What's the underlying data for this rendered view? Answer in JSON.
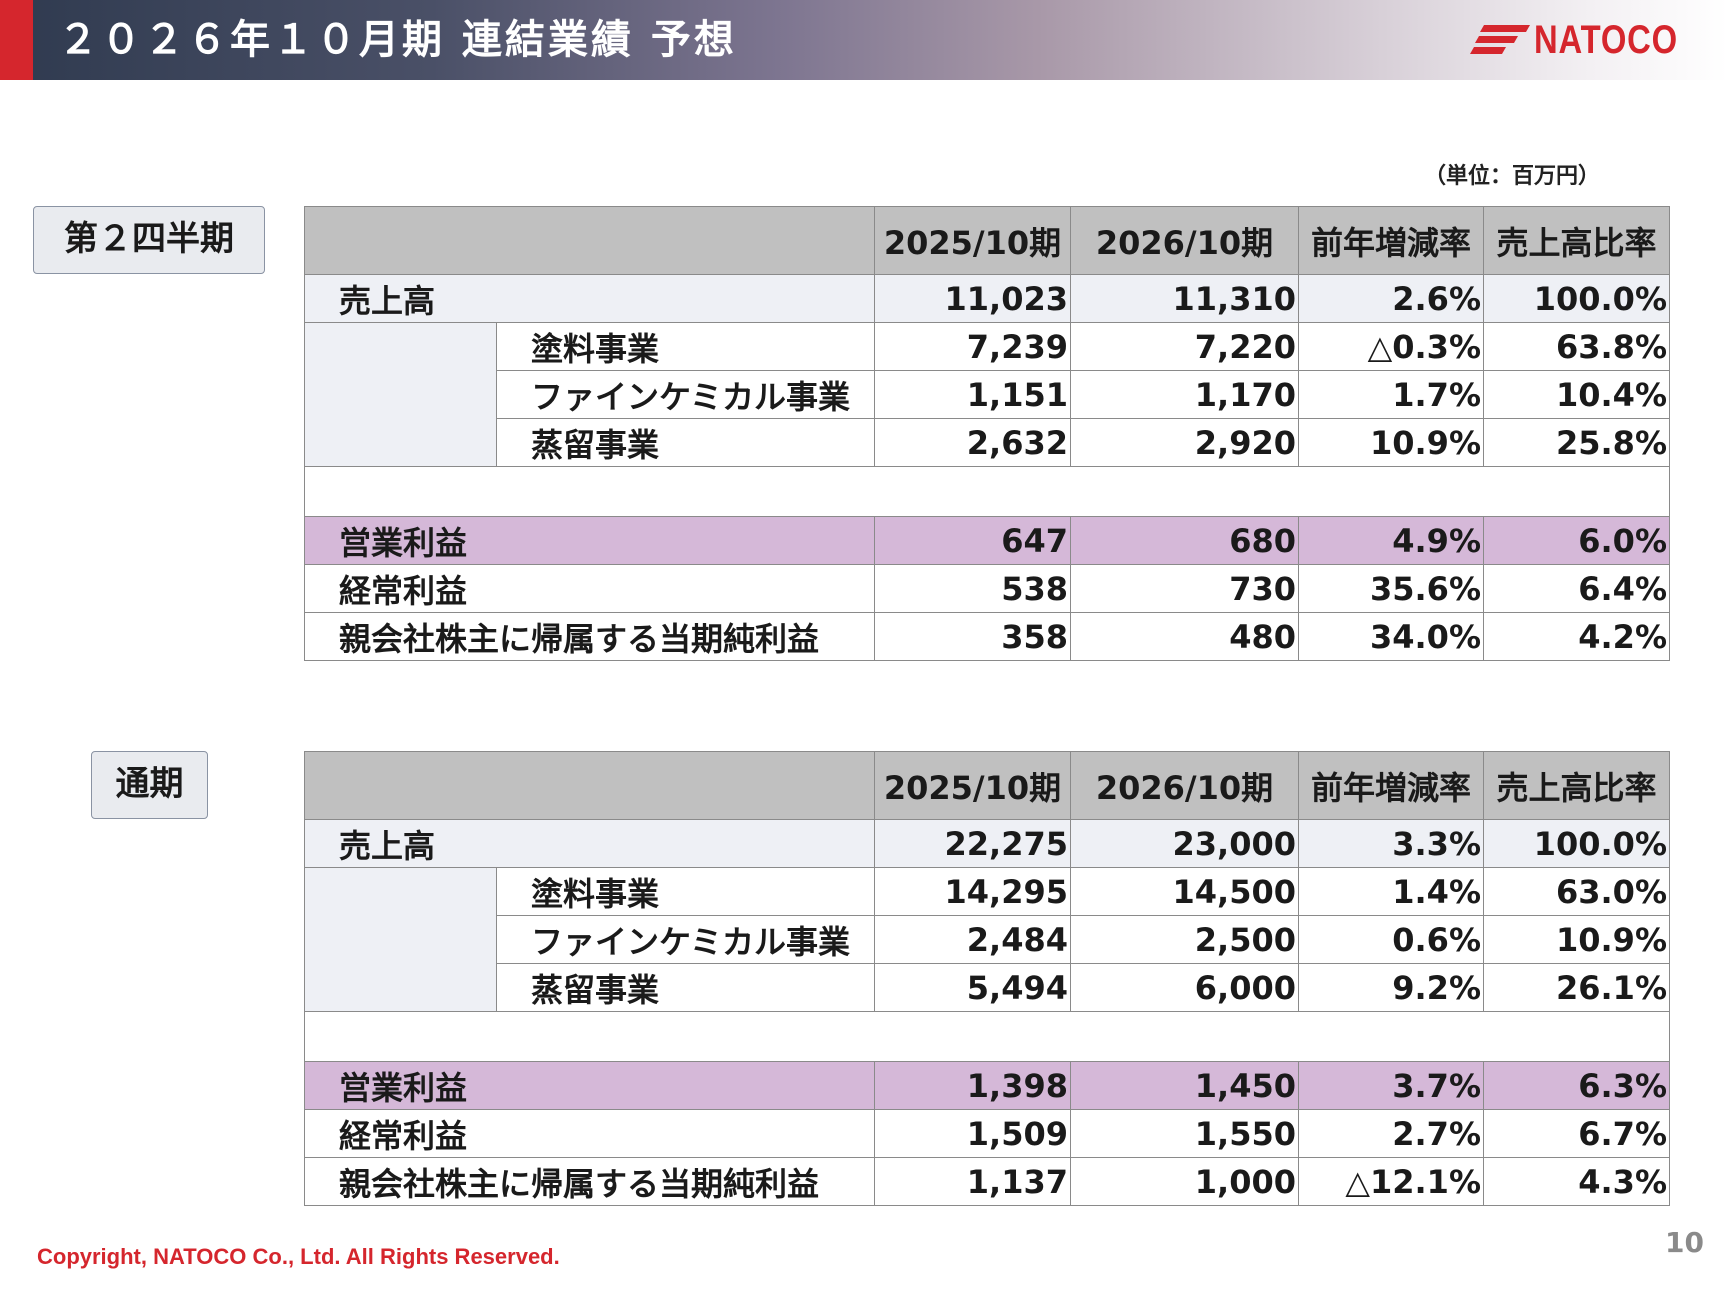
{
  "header": {
    "title": "２０２６年１０月期 連結業績 予想",
    "logo_text": "NATOCO",
    "accent_color": "#d5262d"
  },
  "unit_note": "（単位：百万円）",
  "columns": [
    "",
    "2025/10期",
    "2026/10期",
    "前年増減率",
    "売上高比率"
  ],
  "sections": [
    {
      "label": "第２四半期",
      "sales": {
        "name": "売上高",
        "values": [
          "11,023",
          "11,310",
          "2.6%",
          "100.0%"
        ]
      },
      "segments": [
        {
          "name": "塗料事業",
          "values": [
            "7,239",
            "7,220",
            "△0.3%",
            "63.8%"
          ]
        },
        {
          "name": "ファインケミカル事業",
          "values": [
            "1,151",
            "1,170",
            "1.7%",
            "10.4%"
          ]
        },
        {
          "name": "蒸留事業",
          "values": [
            "2,632",
            "2,920",
            "10.9%",
            "25.8%"
          ]
        }
      ],
      "profits": [
        {
          "name": "営業利益",
          "values": [
            "647",
            "680",
            "4.9%",
            "6.0%"
          ]
        },
        {
          "name": "経常利益",
          "values": [
            "538",
            "730",
            "35.6%",
            "6.4%"
          ]
        },
        {
          "name": "親会社株主に帰属する当期純利益",
          "values": [
            "358",
            "480",
            "34.0%",
            "4.2%"
          ]
        }
      ]
    },
    {
      "label": "通期",
      "sales": {
        "name": "売上高",
        "values": [
          "22,275",
          "23,000",
          "3.3%",
          "100.0%"
        ]
      },
      "segments": [
        {
          "name": "塗料事業",
          "values": [
            "14,295",
            "14,500",
            "1.4%",
            "63.0%"
          ]
        },
        {
          "name": "ファインケミカル事業",
          "values": [
            "2,484",
            "2,500",
            "0.6%",
            "10.9%"
          ]
        },
        {
          "name": "蒸留事業",
          "values": [
            "5,494",
            "6,000",
            "9.2%",
            "26.1%"
          ]
        }
      ],
      "profits": [
        {
          "name": "営業利益",
          "values": [
            "1,398",
            "1,450",
            "3.7%",
            "6.3%"
          ]
        },
        {
          "name": "経常利益",
          "values": [
            "1,509",
            "1,550",
            "2.7%",
            "6.7%"
          ]
        },
        {
          "name": "親会社株主に帰属する当期純利益",
          "values": [
            "1,137",
            "1,000",
            "△12.1%",
            "4.3%"
          ]
        }
      ]
    }
  ],
  "footer": {
    "copyright": "Copyright, NATOCO Co., Ltd. All Rights Reserved.",
    "page_number": "10"
  }
}
